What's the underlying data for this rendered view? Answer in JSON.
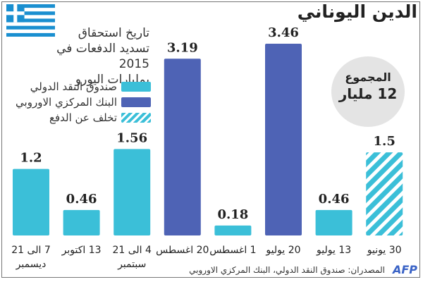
{
  "title": "الدين اليوناني",
  "subtitle": [
    "تاريخ استحقاق",
    "تسديد الدفعات في 2015",
    "بمليارات اليورو"
  ],
  "legend": [
    {
      "label": "صندوق النقد الدولي",
      "color": "#3bbfd8",
      "pattern": "solid"
    },
    {
      "label": "البنك المركزي الاوروبي",
      "color": "#4e63b5",
      "pattern": "solid"
    },
    {
      "label": "تخلف عن الدفع",
      "color": "#3bbfd8",
      "pattern": "hatched"
    }
  ],
  "total": {
    "label": "المجموع",
    "value": "12 مليار"
  },
  "source": "المصدران: صندوق النقد الدولي، البنك المركزي الاوروبي",
  "agency": "AFP",
  "chart_data": {
    "type": "bar",
    "title": "الدين اليوناني",
    "ylim": [
      0,
      3.6
    ],
    "categories": [
      [
        "7 الى 21",
        "ديسمبر"
      ],
      [
        "13 اكتوبر"
      ],
      [
        "4 الى 21",
        "سبتمبر"
      ],
      [
        "20 اغسطس"
      ],
      [
        "1 اغسطس"
      ],
      [
        "20 يوليو"
      ],
      [
        "13 يوليو"
      ],
      [
        "30 يونيو"
      ]
    ],
    "values": [
      1.2,
      0.46,
      1.56,
      3.19,
      0.18,
      3.46,
      0.46,
      1.5
    ],
    "labels": [
      "1.2",
      "0.46",
      "1.56",
      "3.19",
      "0.18",
      "3.46",
      "0.46",
      "1.5"
    ],
    "creditor": [
      "imf",
      "imf",
      "imf",
      "ecb",
      "imf",
      "ecb",
      "imf",
      "default"
    ],
    "colors": {
      "imf": "#3bbfd8",
      "ecb": "#4e63b5",
      "default": "#3bbfd8"
    }
  }
}
